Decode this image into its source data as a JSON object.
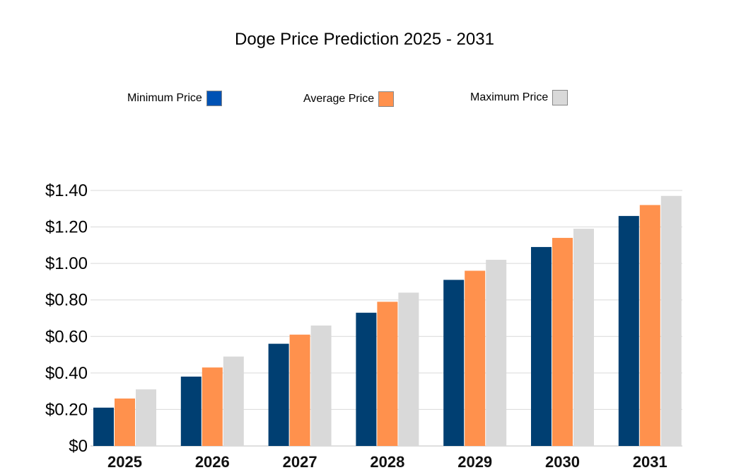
{
  "chart_data": {
    "type": "bar",
    "title": "Doge Price Prediction 2025 - 2031",
    "xlabel": "",
    "ylabel": "",
    "categories": [
      "2025",
      "2026",
      "2027",
      "2028",
      "2029",
      "2030",
      "2031"
    ],
    "series": [
      {
        "name": "Minimum Price",
        "color": "#003f72",
        "legend_color": "#0052b4",
        "values": [
          0.21,
          0.38,
          0.56,
          0.73,
          0.91,
          1.09,
          1.26
        ]
      },
      {
        "name": "Average Price",
        "color": "#ff914d",
        "legend_color": "#ff914d",
        "values": [
          0.26,
          0.43,
          0.61,
          0.79,
          0.96,
          1.14,
          1.32
        ]
      },
      {
        "name": "Maximum Price",
        "color": "#d9d9d9",
        "legend_color": "#d9d9d9",
        "values": [
          0.31,
          0.49,
          0.66,
          0.84,
          1.02,
          1.19,
          1.37
        ]
      }
    ],
    "ylim": [
      0,
      1.4
    ],
    "yticks": [
      0,
      0.2,
      0.4,
      0.6,
      0.8,
      1.0,
      1.2,
      1.4
    ],
    "ytick_labels": [
      "$0",
      "$0.20",
      "$0.40",
      "$0.60",
      "$0.80",
      "$1.00",
      "$1.20",
      "$1.40"
    ],
    "grid": true,
    "legend_position": "top"
  }
}
